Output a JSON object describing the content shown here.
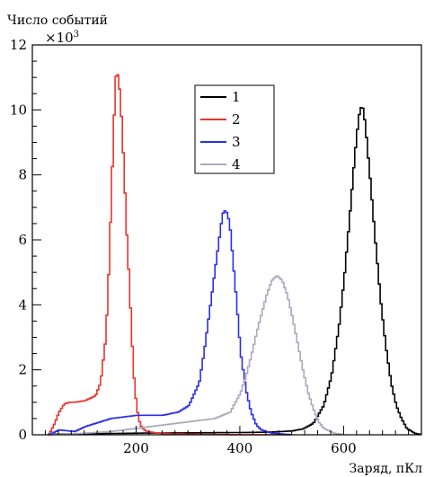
{
  "chart_data": {
    "type": "line",
    "step": true,
    "ylabel": "Число событий",
    "y_multiplier": "×10",
    "y_multiplier_exp": "3",
    "xlabel": "Заряд, пКл",
    "xlim": [
      0,
      750
    ],
    "ylim": [
      0,
      12
    ],
    "x_ticks": [
      200,
      400,
      600
    ],
    "x_tick_labels": [
      "200",
      "400",
      "600"
    ],
    "y_ticks": [
      0,
      2,
      4,
      6,
      8,
      10,
      12
    ],
    "y_tick_labels": [
      "0",
      "2",
      "4",
      "6",
      "8",
      "10",
      "12"
    ],
    "grid": false,
    "legend_position": "upper-center",
    "series": [
      {
        "name": "1",
        "color": "#000000",
        "x": [
          30,
          100,
          200,
          300,
          400,
          450,
          480,
          500,
          520,
          540,
          560,
          575,
          590,
          600,
          610,
          620,
          625,
          630,
          635,
          640,
          645,
          650,
          660,
          670,
          680,
          690,
          700,
          710,
          720,
          735,
          750
        ],
        "y": [
          0.02,
          0.03,
          0.05,
          0.06,
          0.07,
          0.08,
          0.1,
          0.12,
          0.18,
          0.35,
          0.9,
          1.8,
          3.4,
          4.9,
          6.7,
          8.6,
          9.4,
          10.05,
          10.1,
          9.6,
          8.7,
          7.8,
          5.9,
          4.1,
          2.7,
          1.6,
          0.9,
          0.5,
          0.2,
          0.05,
          0.0
        ]
      },
      {
        "name": "2",
        "color": "#e8322c",
        "x": [
          30,
          40,
          50,
          60,
          70,
          80,
          100,
          120,
          130,
          140,
          145,
          150,
          155,
          160,
          165,
          170,
          175,
          180,
          185,
          190,
          195,
          200,
          205,
          210,
          220,
          240,
          260,
          300,
          400,
          500
        ],
        "y": [
          0.0,
          0.3,
          0.7,
          0.95,
          1.0,
          1.0,
          1.05,
          1.2,
          1.6,
          3.0,
          4.7,
          7.0,
          9.5,
          11.2,
          11.0,
          9.8,
          8.2,
          6.3,
          4.8,
          3.0,
          1.6,
          0.8,
          0.4,
          0.2,
          0.1,
          0.05,
          0.03,
          0.02,
          0.0,
          0.0
        ]
      },
      {
        "name": "3",
        "color": "#2a2ee6",
        "x": [
          30,
          50,
          80,
          100,
          120,
          150,
          200,
          250,
          280,
          300,
          320,
          330,
          340,
          350,
          360,
          365,
          370,
          375,
          380,
          385,
          390,
          395,
          400,
          410,
          420,
          430,
          440,
          460,
          500
        ],
        "y": [
          0.0,
          0.15,
          0.1,
          0.25,
          0.35,
          0.5,
          0.6,
          0.6,
          0.7,
          0.9,
          1.6,
          2.6,
          3.8,
          5.0,
          6.2,
          6.8,
          6.9,
          6.8,
          6.3,
          5.4,
          4.5,
          3.5,
          2.5,
          1.4,
          0.7,
          0.3,
          0.15,
          0.05,
          0.0
        ]
      },
      {
        "name": "4",
        "color": "#a9a9be",
        "x": [
          30,
          100,
          150,
          200,
          250,
          300,
          350,
          380,
          400,
          410,
          420,
          430,
          440,
          450,
          460,
          470,
          480,
          490,
          500,
          510,
          520,
          530,
          540,
          550,
          560,
          580,
          600
        ],
        "y": [
          0.0,
          0.05,
          0.1,
          0.2,
          0.3,
          0.4,
          0.5,
          0.7,
          1.3,
          1.8,
          2.4,
          3.1,
          3.7,
          4.3,
          4.75,
          4.9,
          4.75,
          4.3,
          3.6,
          2.8,
          2.0,
          1.3,
          0.8,
          0.4,
          0.2,
          0.05,
          0.0
        ]
      }
    ]
  }
}
